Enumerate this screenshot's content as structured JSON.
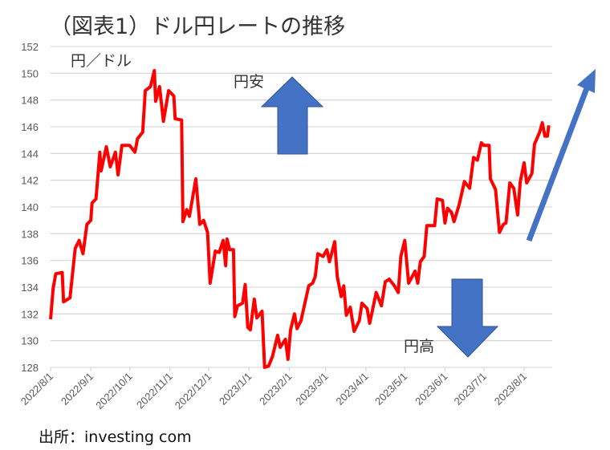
{
  "chart_data": {
    "type": "line",
    "title": "（図表1）ドル円レートの推移",
    "ylabel": "円／ドル",
    "xlabel": "",
    "ylim": [
      128,
      152
    ],
    "yticks": [
      128,
      130,
      132,
      134,
      136,
      138,
      140,
      142,
      144,
      146,
      148,
      150,
      152
    ],
    "xticks": [
      "2022/8/1",
      "2022/9/1",
      "2022/10/1",
      "2022/11/1",
      "2022/12/1",
      "2023/1/1",
      "2023/2/1",
      "2023/3/1",
      "2023/4/1",
      "2023/5/1",
      "2023/6/1",
      "2023/7/1",
      "2023/8/1"
    ],
    "xtick_dates": [
      "2022-08-01",
      "2022-09-01",
      "2022-10-01",
      "2022-11-01",
      "2022-12-01",
      "2023-01-01",
      "2023-02-01",
      "2023-03-01",
      "2023-04-01",
      "2023-05-01",
      "2023-06-01",
      "2023-07-01",
      "2023-08-01"
    ],
    "grid": "horizontal",
    "series_color": "#ff0000",
    "arrow_color": "#4472c4",
    "annotations": {
      "weak_yen": "円安",
      "strong_yen": "円高"
    },
    "points": [
      [
        "2022-08-01",
        131.6
      ],
      [
        "2022-08-03",
        133.9
      ],
      [
        "2022-08-05",
        135.0
      ],
      [
        "2022-08-10",
        135.1
      ],
      [
        "2022-08-11",
        132.9
      ],
      [
        "2022-08-16",
        133.2
      ],
      [
        "2022-08-20",
        136.9
      ],
      [
        "2022-08-23",
        137.5
      ],
      [
        "2022-08-26",
        136.5
      ],
      [
        "2022-08-29",
        138.7
      ],
      [
        "2022-09-01",
        139.0
      ],
      [
        "2022-09-02",
        140.3
      ],
      [
        "2022-09-05",
        140.6
      ],
      [
        "2022-09-08",
        144.1
      ],
      [
        "2022-09-09",
        142.7
      ],
      [
        "2022-09-13",
        144.5
      ],
      [
        "2022-09-16",
        143.0
      ],
      [
        "2022-09-20",
        144.1
      ],
      [
        "2022-09-22",
        142.4
      ],
      [
        "2022-09-25",
        144.6
      ],
      [
        "2022-10-01",
        144.6
      ],
      [
        "2022-10-05",
        144.1
      ],
      [
        "2022-10-07",
        145.1
      ],
      [
        "2022-10-11",
        145.6
      ],
      [
        "2022-10-13",
        148.7
      ],
      [
        "2022-10-17",
        149.0
      ],
      [
        "2022-10-20",
        150.2
      ],
      [
        "2022-10-21",
        147.9
      ],
      [
        "2022-10-24",
        149.0
      ],
      [
        "2022-10-27",
        146.4
      ],
      [
        "2022-10-31",
        148.7
      ],
      [
        "2022-11-04",
        148.3
      ],
      [
        "2022-11-05",
        146.6
      ],
      [
        "2022-11-10",
        146.5
      ],
      [
        "2022-11-11",
        138.9
      ],
      [
        "2022-11-14",
        139.8
      ],
      [
        "2022-11-16",
        139.3
      ],
      [
        "2022-11-21",
        142.1
      ],
      [
        "2022-11-24",
        138.7
      ],
      [
        "2022-11-27",
        139.0
      ],
      [
        "2022-11-30",
        138.1
      ],
      [
        "2022-12-02",
        134.3
      ],
      [
        "2022-12-06",
        136.7
      ],
      [
        "2022-12-09",
        136.6
      ],
      [
        "2022-12-12",
        137.5
      ],
      [
        "2022-12-14",
        135.6
      ],
      [
        "2022-12-15",
        137.6
      ],
      [
        "2022-12-17",
        136.8
      ],
      [
        "2022-12-20",
        136.8
      ],
      [
        "2022-12-21",
        131.8
      ],
      [
        "2022-12-23",
        132.6
      ],
      [
        "2022-12-27",
        132.8
      ],
      [
        "2022-12-29",
        134.2
      ],
      [
        "2022-12-31",
        131.0
      ],
      [
        "2023-01-02",
        130.8
      ],
      [
        "2023-01-05",
        133.1
      ],
      [
        "2023-01-07",
        131.7
      ],
      [
        "2023-01-11",
        132.2
      ],
      [
        "2023-01-13",
        128.0
      ],
      [
        "2023-01-16",
        128.1
      ],
      [
        "2023-01-19",
        128.8
      ],
      [
        "2023-01-23",
        130.4
      ],
      [
        "2023-01-25",
        129.5
      ],
      [
        "2023-01-29",
        130.1
      ],
      [
        "2023-01-31",
        128.6
      ],
      [
        "2023-02-02",
        130.8
      ],
      [
        "2023-02-05",
        132.0
      ],
      [
        "2023-02-07",
        130.9
      ],
      [
        "2023-02-10",
        131.5
      ],
      [
        "2023-02-16",
        134.1
      ],
      [
        "2023-02-19",
        134.3
      ],
      [
        "2023-02-21",
        134.8
      ],
      [
        "2023-02-23",
        136.5
      ],
      [
        "2023-02-27",
        136.3
      ],
      [
        "2023-03-02",
        136.8
      ],
      [
        "2023-03-04",
        135.9
      ],
      [
        "2023-03-08",
        137.4
      ],
      [
        "2023-03-10",
        134.8
      ],
      [
        "2023-03-13",
        133.3
      ],
      [
        "2023-03-15",
        134.1
      ],
      [
        "2023-03-17",
        131.9
      ],
      [
        "2023-03-20",
        132.5
      ],
      [
        "2023-03-23",
        130.7
      ],
      [
        "2023-03-27",
        131.5
      ],
      [
        "2023-03-29",
        132.8
      ],
      [
        "2023-04-02",
        132.4
      ],
      [
        "2023-04-04",
        131.3
      ],
      [
        "2023-04-09",
        133.6
      ],
      [
        "2023-04-13",
        132.6
      ],
      [
        "2023-04-16",
        134.4
      ],
      [
        "2023-04-19",
        134.6
      ],
      [
        "2023-04-23",
        134.1
      ],
      [
        "2023-04-26",
        133.6
      ],
      [
        "2023-04-28",
        136.3
      ],
      [
        "2023-05-01",
        137.5
      ],
      [
        "2023-05-04",
        134.3
      ],
      [
        "2023-05-09",
        135.2
      ],
      [
        "2023-05-11",
        134.3
      ],
      [
        "2023-05-13",
        135.9
      ],
      [
        "2023-05-16",
        136.3
      ],
      [
        "2023-05-18",
        138.6
      ],
      [
        "2023-05-24",
        138.6
      ],
      [
        "2023-05-26",
        140.6
      ],
      [
        "2023-05-30",
        140.5
      ],
      [
        "2023-06-01",
        138.8
      ],
      [
        "2023-06-03",
        139.9
      ],
      [
        "2023-06-06",
        139.6
      ],
      [
        "2023-06-08",
        138.9
      ],
      [
        "2023-06-12",
        140.2
      ],
      [
        "2023-06-16",
        141.9
      ],
      [
        "2023-06-20",
        141.4
      ],
      [
        "2023-06-23",
        143.7
      ],
      [
        "2023-06-26",
        143.5
      ],
      [
        "2023-06-29",
        144.8
      ],
      [
        "2023-07-01",
        144.6
      ],
      [
        "2023-07-05",
        144.6
      ],
      [
        "2023-07-06",
        142.1
      ],
      [
        "2023-07-10",
        141.3
      ],
      [
        "2023-07-13",
        138.1
      ],
      [
        "2023-07-16",
        138.7
      ],
      [
        "2023-07-18",
        138.8
      ],
      [
        "2023-07-21",
        141.8
      ],
      [
        "2023-07-24",
        141.4
      ],
      [
        "2023-07-27",
        139.4
      ],
      [
        "2023-07-29",
        141.9
      ],
      [
        "2023-08-01",
        143.3
      ],
      [
        "2023-08-03",
        141.8
      ],
      [
        "2023-08-07",
        142.5
      ],
      [
        "2023-08-09",
        144.7
      ],
      [
        "2023-08-13",
        145.6
      ],
      [
        "2023-08-15",
        146.3
      ],
      [
        "2023-08-17",
        145.3
      ],
      [
        "2023-08-19",
        145.3
      ],
      [
        "2023-08-20",
        146.1
      ]
    ]
  },
  "source": "出所：investing com"
}
